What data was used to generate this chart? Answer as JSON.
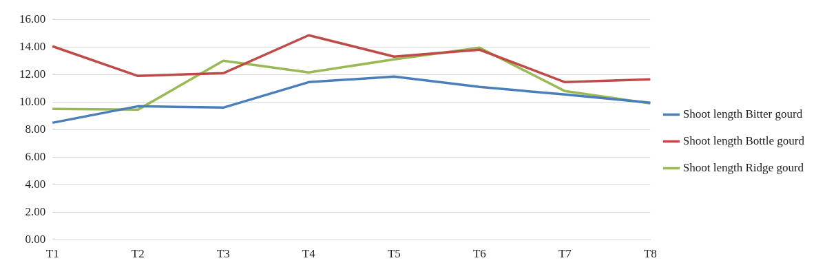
{
  "chart_data": {
    "type": "line",
    "categories": [
      "T1",
      "T2",
      "T3",
      "T4",
      "T5",
      "T6",
      "T7",
      "T8"
    ],
    "series": [
      {
        "name": "Shoot length Bitter gourd",
        "color": "#4a7ebb",
        "values": [
          8.5,
          9.7,
          9.6,
          11.45,
          11.85,
          11.1,
          10.55,
          9.95
        ]
      },
      {
        "name": "Shoot length Bottle gourd",
        "color": "#be4b48",
        "values": [
          14.05,
          11.9,
          12.1,
          14.85,
          13.3,
          13.8,
          11.45,
          11.65
        ]
      },
      {
        "name": "Shoot length Ridge gourd",
        "color": "#98b954",
        "values": [
          9.5,
          9.45,
          13.0,
          12.15,
          13.1,
          13.95,
          10.8,
          9.9
        ]
      }
    ],
    "ylim": [
      0,
      16
    ],
    "yticks": [
      {
        "value": 0,
        "label": "0.00"
      },
      {
        "value": 2,
        "label": "2.00"
      },
      {
        "value": 4,
        "label": "4.00"
      },
      {
        "value": 6,
        "label": "6.00"
      },
      {
        "value": 8,
        "label": "8.00"
      },
      {
        "value": 10,
        "label": "10.00"
      },
      {
        "value": 12,
        "label": "12.00"
      },
      {
        "value": 14,
        "label": "14.00"
      },
      {
        "value": 16,
        "label": "16.00"
      }
    ],
    "grid": "y",
    "legend": "right",
    "marker": "none",
    "line_style": "solid"
  }
}
